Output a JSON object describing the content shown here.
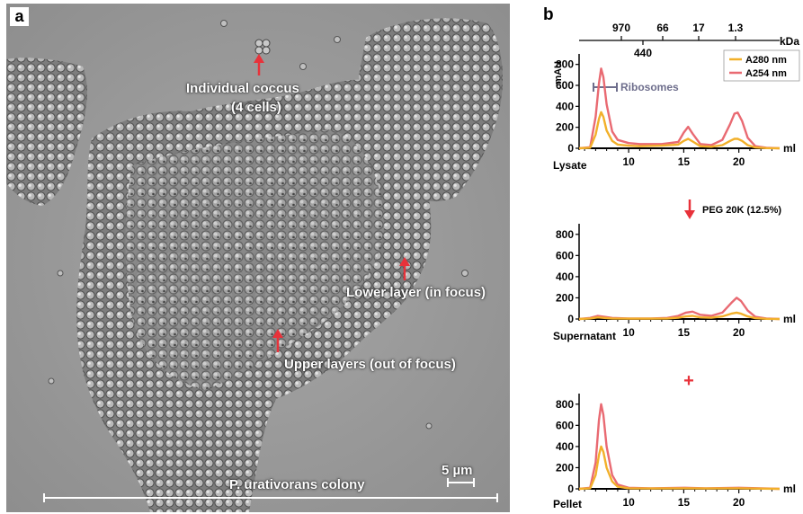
{
  "panel_a": {
    "letter": "a",
    "annotations": {
      "coccus_line1": "Individual coccus",
      "coccus_line2": "(4 cells)",
      "lower_layer": "Lower layer (in focus)",
      "upper_layers": "Upper layers (out of focus)",
      "colony": "P. urativorans colony",
      "scale": "5 µm"
    },
    "arrow_color": "#e8323a"
  },
  "panel_b": {
    "letter": "b",
    "kda_unit": "kDa",
    "kda_ticks": [
      "970",
      "66",
      "17",
      "1.3"
    ],
    "kda_extra": "440",
    "y_unit": "mAU",
    "x_unit": "ml",
    "ribosomes_label": "Ribosomes",
    "peg_label": "PEG 20K (12.5%)",
    "plus_symbol": "+",
    "arrow_down": "↓"
  },
  "chart_data": [
    {
      "type": "line",
      "title": "Lysate",
      "xlabel": "ml",
      "ylabel": "mAU",
      "xlim": [
        5.5,
        23.7
      ],
      "ylim": [
        0,
        900
      ],
      "yticks": [
        0,
        200,
        400,
        600,
        800
      ],
      "xticks": [
        10,
        15,
        20
      ],
      "legend": {
        "position": "top-right",
        "entries": [
          "A280 nm",
          "A254 nm"
        ]
      },
      "series": [
        {
          "name": "A254 nm",
          "color": "#e96a72",
          "x": [
            5.5,
            6.5,
            7.0,
            7.3,
            7.5,
            7.7,
            8.0,
            8.5,
            9.0,
            10.0,
            11.0,
            13.0,
            14.5,
            15.0,
            15.4,
            15.8,
            16.5,
            17.5,
            18.5,
            19.2,
            19.6,
            19.9,
            20.3,
            20.8,
            21.5,
            22.5,
            23.7
          ],
          "y": [
            0,
            10,
            300,
            620,
            760,
            680,
            420,
            160,
            80,
            50,
            40,
            40,
            60,
            150,
            205,
            140,
            40,
            30,
            80,
            230,
            330,
            340,
            260,
            100,
            20,
            5,
            0
          ]
        },
        {
          "name": "A280 nm",
          "color": "#f2b02a",
          "x": [
            5.5,
            6.5,
            7.0,
            7.3,
            7.5,
            7.7,
            8.0,
            8.5,
            9.0,
            10.0,
            11.0,
            13.0,
            14.5,
            15.0,
            15.4,
            15.8,
            16.5,
            17.5,
            18.5,
            19.2,
            19.6,
            19.9,
            20.3,
            20.8,
            21.5,
            22.5,
            23.7
          ],
          "y": [
            0,
            5,
            130,
            280,
            345,
            300,
            170,
            70,
            35,
            25,
            20,
            25,
            35,
            70,
            90,
            65,
            20,
            15,
            30,
            70,
            90,
            90,
            70,
            30,
            8,
            2,
            0
          ]
        }
      ]
    },
    {
      "type": "line",
      "title": "Supernatant",
      "xlabel": "ml",
      "ylabel": "",
      "xlim": [
        5.5,
        23.7
      ],
      "ylim": [
        0,
        900
      ],
      "yticks": [
        0,
        200,
        400,
        600,
        800
      ],
      "xticks": [
        10,
        15,
        20
      ],
      "series": [
        {
          "name": "A254 nm",
          "color": "#e96a72",
          "x": [
            5.5,
            6.5,
            7.2,
            7.8,
            8.5,
            10.0,
            12.0,
            13.5,
            14.5,
            15.2,
            15.8,
            16.5,
            17.5,
            18.5,
            19.3,
            19.8,
            20.2,
            20.8,
            21.5,
            22.5,
            23.7
          ],
          "y": [
            0,
            10,
            30,
            20,
            10,
            5,
            5,
            10,
            30,
            60,
            70,
            40,
            30,
            60,
            150,
            200,
            170,
            80,
            20,
            5,
            0
          ]
        },
        {
          "name": "A280 nm",
          "color": "#f2b02a",
          "x": [
            5.5,
            6.5,
            7.2,
            7.8,
            8.5,
            10.0,
            12.0,
            13.5,
            14.5,
            15.2,
            15.8,
            16.5,
            17.5,
            18.5,
            19.3,
            19.8,
            20.2,
            20.8,
            21.5,
            22.5,
            23.7
          ],
          "y": [
            0,
            5,
            15,
            10,
            5,
            3,
            3,
            5,
            12,
            25,
            30,
            15,
            12,
            25,
            50,
            60,
            50,
            25,
            8,
            2,
            0
          ]
        }
      ]
    },
    {
      "type": "line",
      "title": "Pellet",
      "xlabel": "ml",
      "ylabel": "",
      "xlim": [
        5.5,
        23.7
      ],
      "ylim": [
        0,
        900
      ],
      "yticks": [
        0,
        200,
        400,
        600,
        800
      ],
      "xticks": [
        10,
        15,
        20
      ],
      "series": [
        {
          "name": "A254 nm",
          "color": "#e96a72",
          "x": [
            5.5,
            6.5,
            7.0,
            7.3,
            7.5,
            7.7,
            8.0,
            8.5,
            9.0,
            10.0,
            12.0,
            15.0,
            17.0,
            20.0,
            23.7
          ],
          "y": [
            0,
            10,
            250,
            650,
            800,
            700,
            400,
            130,
            40,
            10,
            5,
            10,
            5,
            10,
            0
          ]
        },
        {
          "name": "A280 nm",
          "color": "#f2b02a",
          "x": [
            5.5,
            6.5,
            7.0,
            7.3,
            7.5,
            7.7,
            8.0,
            8.5,
            9.0,
            10.0,
            12.0,
            15.0,
            17.0,
            20.0,
            23.7
          ],
          "y": [
            0,
            5,
            130,
            320,
            400,
            350,
            200,
            70,
            20,
            5,
            3,
            5,
            3,
            5,
            0
          ]
        }
      ]
    }
  ]
}
